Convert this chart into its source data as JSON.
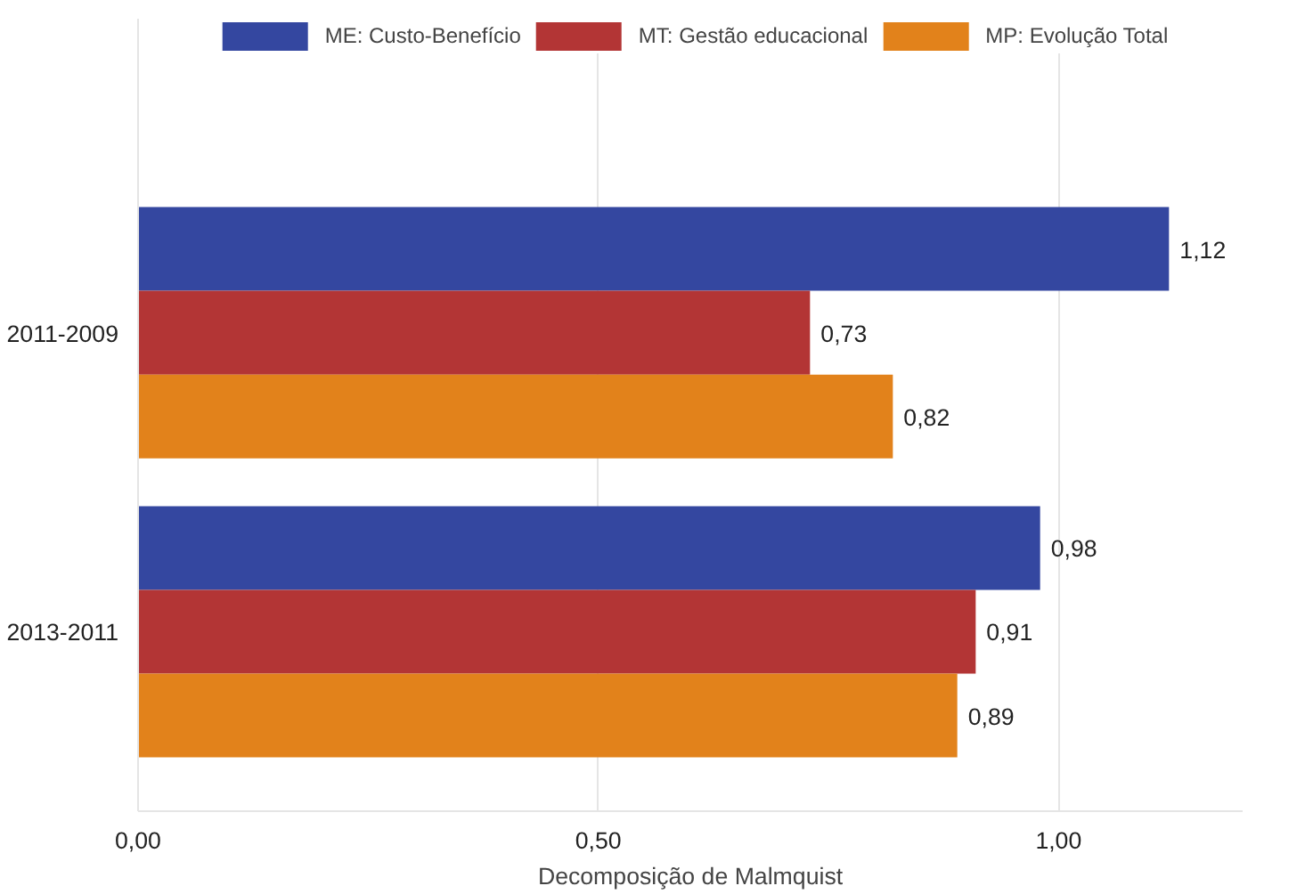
{
  "chart_data": {
    "type": "bar",
    "orientation": "horizontal",
    "xlabel": "Decomposição de Malmquist",
    "categories": [
      "2011-2009",
      "2013-2011"
    ],
    "series": [
      {
        "name": "ME: Custo-Benefício",
        "color": "#3447a0",
        "values": [
          1.12,
          0.98
        ],
        "value_labels": [
          "1,12",
          "0,98"
        ]
      },
      {
        "name": "MT: Gestão educacional",
        "color": "#b33535",
        "values": [
          0.73,
          0.91
        ],
        "value_labels": [
          "0,73",
          "0,91"
        ]
      },
      {
        "name": "MP: Evolução Total",
        "color": "#e2821b",
        "values": [
          0.82,
          0.89
        ],
        "value_labels": [
          "0,82",
          "0,89"
        ]
      }
    ],
    "xlim": [
      0,
      1.2
    ],
    "xticks": [
      {
        "value": 0,
        "label": "0,00"
      },
      {
        "value": 0.5,
        "label": "0,50"
      },
      {
        "value": 1,
        "label": "1,00"
      }
    ],
    "grid": "x",
    "legend": "top"
  }
}
